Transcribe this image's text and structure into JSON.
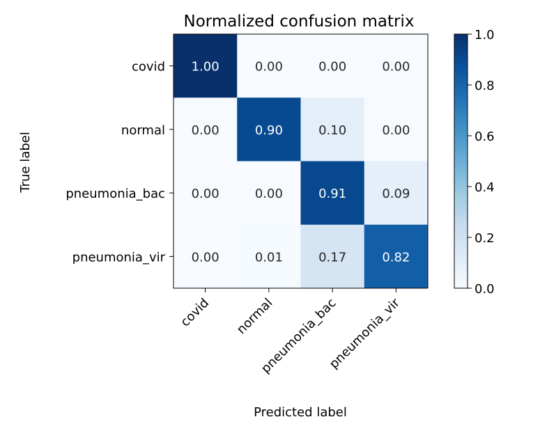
{
  "chart_data": {
    "type": "heatmap",
    "title": "Normalized confusion matrix",
    "xlabel": "Predicted label",
    "ylabel": "True label",
    "x_categories": [
      "covid",
      "normal",
      "pneumonia_bac",
      "pneumonia_vir"
    ],
    "y_categories": [
      "covid",
      "normal",
      "pneumonia_bac",
      "pneumonia_vir"
    ],
    "values": [
      [
        1.0,
        0.0,
        0.0,
        0.0
      ],
      [
        0.0,
        0.9,
        0.1,
        0.0
      ],
      [
        0.0,
        0.0,
        0.91,
        0.09
      ],
      [
        0.0,
        0.01,
        0.17,
        0.82
      ]
    ],
    "cell_labels": [
      [
        "1.00",
        "0.00",
        "0.00",
        "0.00"
      ],
      [
        "0.00",
        "0.90",
        "0.10",
        "0.00"
      ],
      [
        "0.00",
        "0.00",
        "0.91",
        "0.09"
      ],
      [
        "0.00",
        "0.01",
        "0.17",
        "0.82"
      ]
    ],
    "colormap": "Blues",
    "vmin": 0.0,
    "vmax": 1.0,
    "colorbar_ticks": [
      "0.0",
      "0.2",
      "0.4",
      "0.6",
      "0.8",
      "1.0"
    ],
    "text_color_dark": "#262626",
    "text_color_light": "#ffffff",
    "grid": false
  }
}
